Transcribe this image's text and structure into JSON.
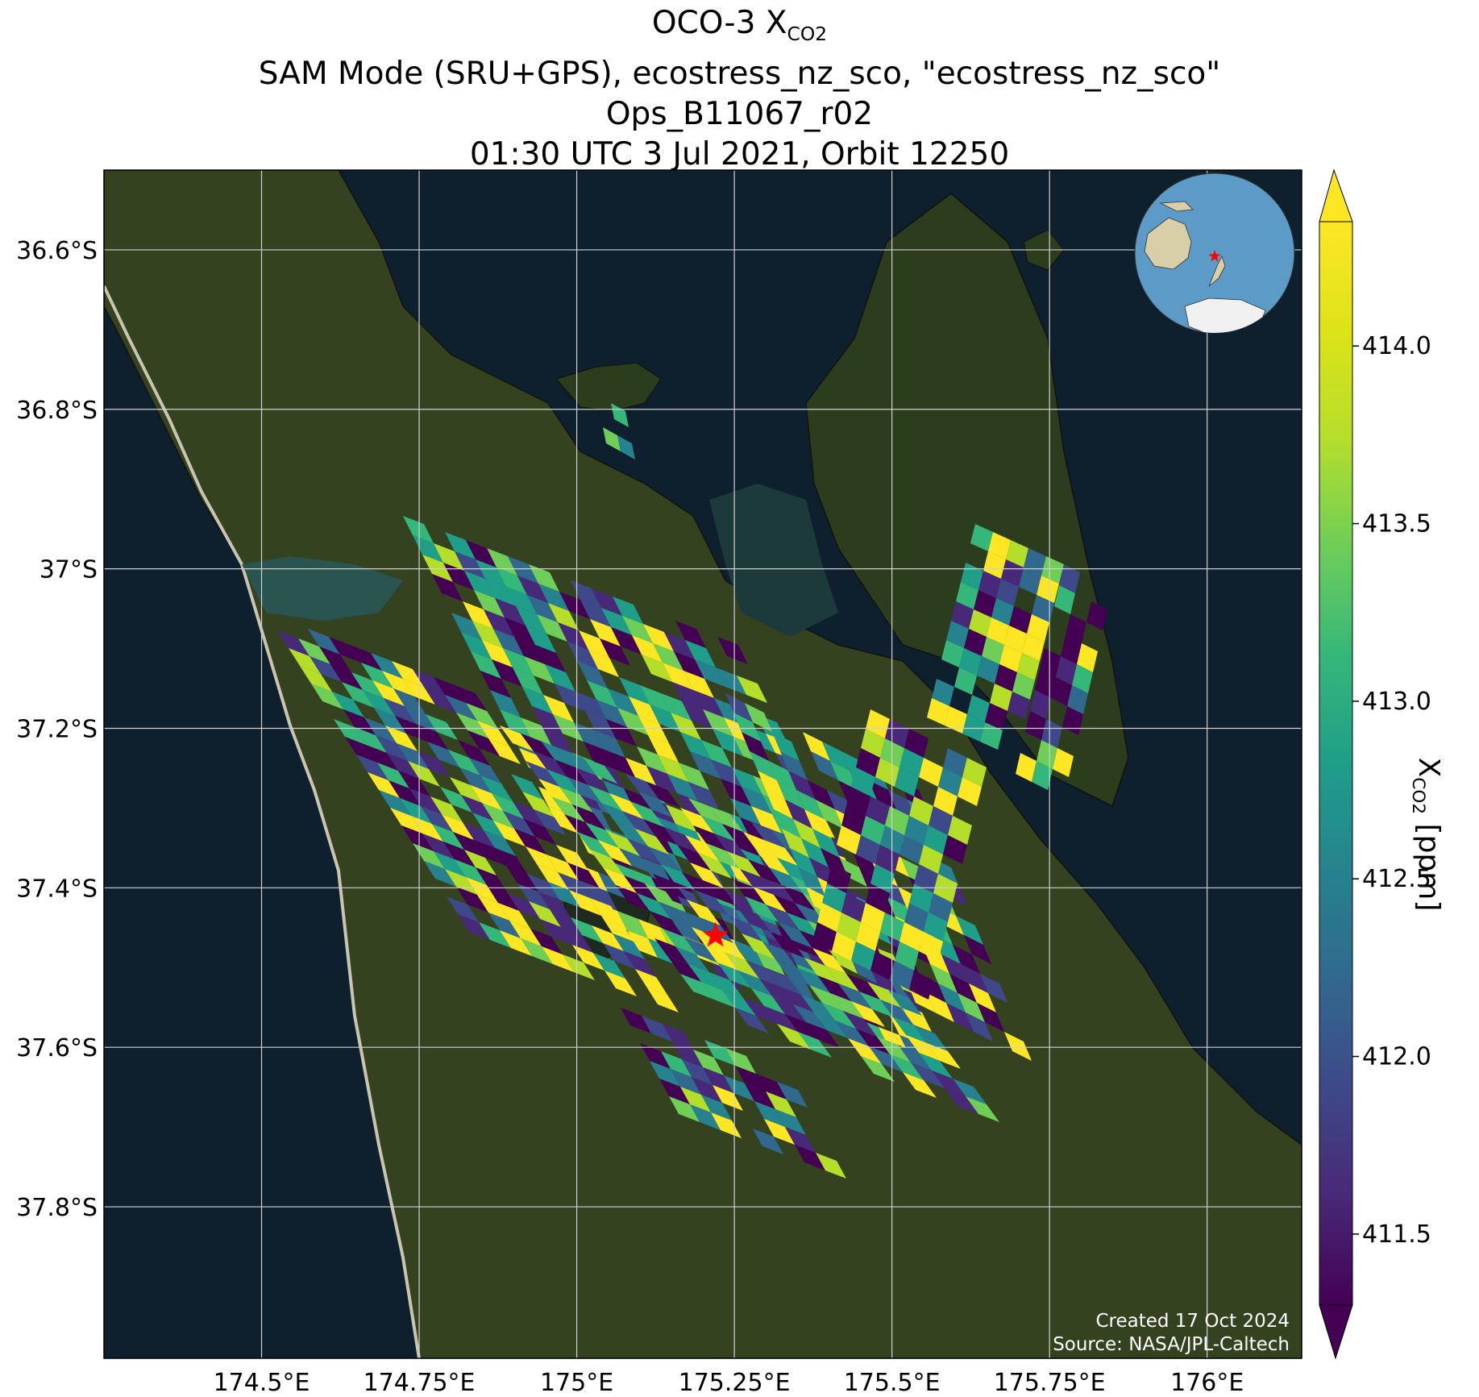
{
  "title": {
    "line1_prefix": "OCO-3 X",
    "line1_sub": "CO2",
    "line2": "SAM Mode (SRU+GPS), ecostress_nz_sco, \"ecostress_nz_sco\"",
    "line3": "Ops_B11067_r02",
    "line4": "01:30 UTC 3 Jul 2021, Orbit 12250"
  },
  "map": {
    "lon_range": [
      174.25,
      176.15
    ],
    "lat_range": [
      -37.99,
      -36.5
    ],
    "lon_ticks": [
      174.5,
      174.75,
      175.0,
      175.25,
      175.5,
      175.75,
      176.0
    ],
    "lon_tick_labels": [
      "174.5°E",
      "174.75°E",
      "175°E",
      "175.25°E",
      "175.5°E",
      "175.75°E",
      "176°E"
    ],
    "lat_ticks": [
      -36.6,
      -36.8,
      -37.0,
      -37.2,
      -37.4,
      -37.6,
      -37.8
    ],
    "lat_tick_labels": [
      "36.6°S",
      "36.8°S",
      "37°S",
      "37.2°S",
      "37.4°S",
      "37.6°S",
      "37.8°S"
    ],
    "grid": true,
    "target_marker": {
      "lon": 175.22,
      "lat": -37.46,
      "color": "#ff0000",
      "symbol": "star"
    },
    "ocean_color": "#0e1f2e",
    "land_color": "#2f3d22"
  },
  "colorbar": {
    "label_prefix": "X",
    "label_sub": "CO2",
    "label_suffix": " [ppm]",
    "range": [
      411.3,
      414.35
    ],
    "ticks": [
      411.5,
      412.0,
      412.5,
      413.0,
      413.5,
      414.0
    ],
    "tick_labels": [
      "411.5",
      "412.0",
      "412.5",
      "413.0",
      "413.5",
      "414.0"
    ],
    "extend": "both",
    "colormap": "viridis"
  },
  "inset_globe": {
    "ocean": "#5c9bc7",
    "land": "#d8cfa8",
    "ice": "#f0f0f0",
    "marker_color": "#ff0000"
  },
  "credits": {
    "created": "Created 17 Oct 2024",
    "source": "Source: NASA/JPL-Caltech"
  }
}
